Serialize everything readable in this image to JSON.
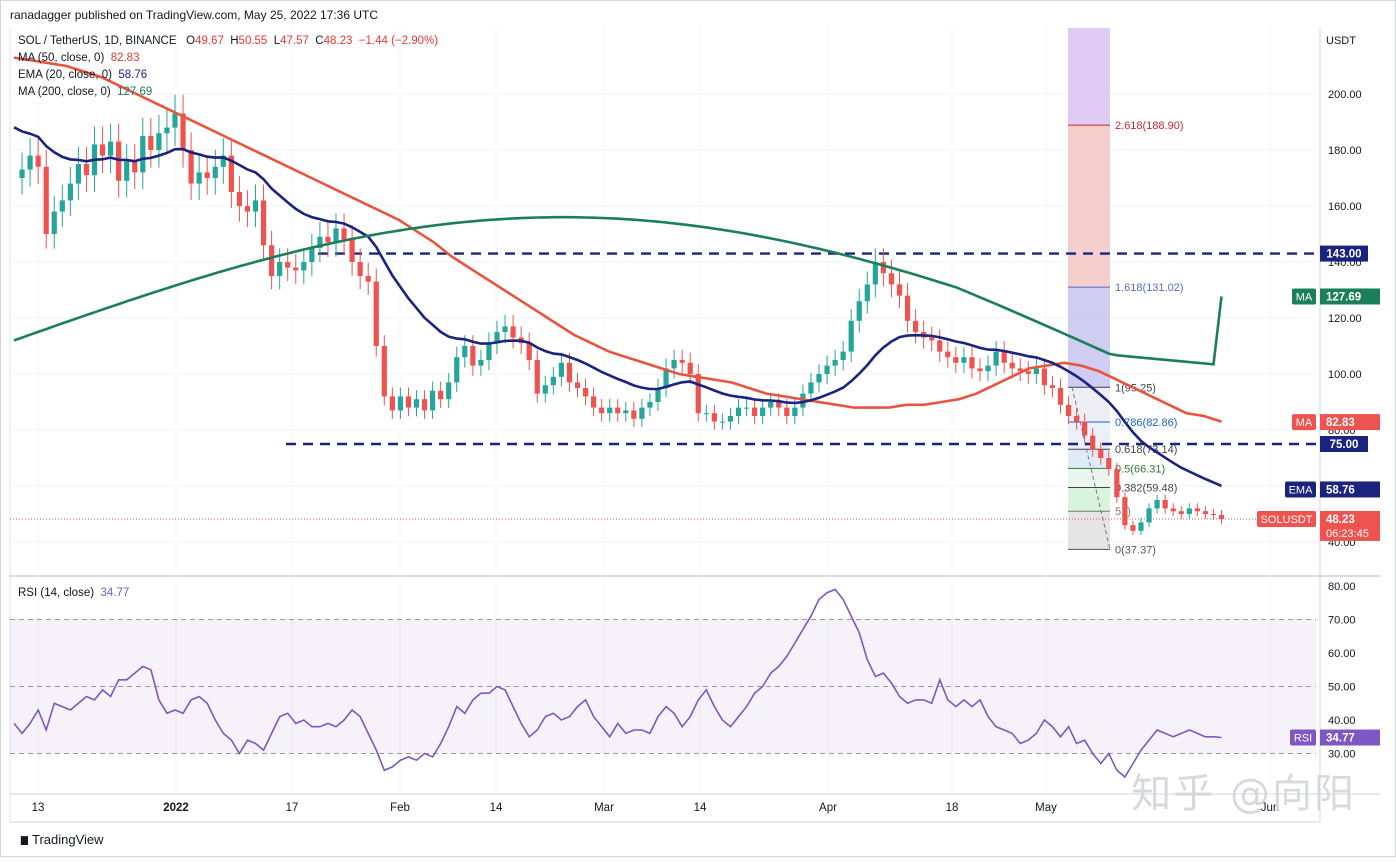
{
  "header": {
    "published": "ranadagger published on TradingView.com, May 25, 2022 17:36 UTC",
    "symbol": "SOL / TetherUS, 1D, BINANCE",
    "ohlc": [
      {
        "label": "O",
        "value": "49.67"
      },
      {
        "label": "H",
        "value": "50.55"
      },
      {
        "label": "L",
        "value": "47.57"
      },
      {
        "label": "C",
        "value": "48.23"
      }
    ],
    "change": "−1.44 (−2.90%)"
  },
  "indicators": [
    {
      "name": "MA (50, close, 0)",
      "value": "82.83",
      "color": "#e8553e"
    },
    {
      "name": "EMA (20, close, 0)",
      "value": "58.76",
      "color": "#1a237e"
    },
    {
      "name": "MA (200, close, 0)",
      "value": "127.69",
      "color": "#1b7f5a"
    }
  ],
  "rsi": {
    "name": "RSI (14, close)",
    "value": "34.77",
    "color": "#7e57c2"
  },
  "branding": {
    "logo_text": "TradingView",
    "watermark": "知乎 @向阳"
  },
  "colors": {
    "up": "#26a69a",
    "down": "#ef5350",
    "ema": "#1a237e",
    "ma50": "#e8553e",
    "ma200": "#1b7f5a",
    "rsi": "#7e57c2"
  },
  "chart_data": [
    {
      "type": "candlestick",
      "title": "SOL / TetherUS, 1D, BINANCE",
      "yunit": "USDT",
      "ylim": [
        36,
        218
      ],
      "yticks": [
        40,
        60,
        80,
        100,
        120,
        140,
        160,
        180,
        200
      ],
      "x_tick_labels": [
        "13",
        "2022",
        "17",
        "Feb",
        "14",
        "Mar",
        "14",
        "Apr",
        "18",
        "May",
        "Jun"
      ],
      "close_series": [
        170,
        173,
        178,
        174,
        150,
        158,
        162,
        168,
        175,
        171,
        182,
        178,
        183,
        169,
        176,
        172,
        185,
        180,
        186,
        188,
        193,
        180,
        168,
        172,
        170,
        174,
        178,
        165,
        160,
        158,
        162,
        146,
        135,
        140,
        138,
        137,
        140,
        145,
        149,
        147,
        152,
        148,
        140,
        135,
        133,
        110,
        92,
        87,
        92,
        88,
        91,
        87,
        94,
        91,
        97,
        106,
        110,
        103,
        105,
        111,
        115,
        117,
        113,
        111,
        105,
        93,
        96,
        99,
        104,
        97,
        95,
        92,
        88,
        86,
        88,
        86,
        87,
        84,
        88,
        90,
        95,
        102,
        105,
        104,
        100,
        86,
        86,
        83,
        83,
        85,
        88,
        88,
        85,
        88,
        90,
        88,
        85,
        88,
        93,
        97,
        100,
        103,
        105,
        108,
        119,
        126,
        132,
        140,
        136,
        132,
        128,
        119,
        115,
        113,
        112,
        108,
        106,
        104,
        106,
        102,
        101,
        103,
        108,
        104,
        102,
        101,
        100,
        102,
        96,
        95,
        89,
        85,
        83,
        78,
        73,
        70,
        66,
        56,
        46,
        44,
        47,
        52,
        55,
        52,
        51,
        50,
        52,
        51,
        50,
        49.67,
        48.23
      ],
      "ohlc_last": {
        "open": 49.67,
        "high": 50.55,
        "low": 47.57,
        "close": 48.23
      },
      "series": [
        {
          "name": "MA (50, close, 0)",
          "last": 82.83,
          "values": [
            213,
            212,
            211,
            210,
            208,
            206,
            203,
            200,
            197,
            194,
            191,
            188,
            185,
            182,
            179,
            176,
            173,
            170,
            167,
            164,
            161,
            158,
            155,
            151,
            147,
            142,
            138,
            134,
            130,
            126,
            122,
            118,
            114,
            111,
            108,
            106,
            104,
            102,
            100,
            99,
            98,
            97,
            95,
            93,
            92,
            91,
            90,
            89,
            88,
            88,
            88,
            89,
            89,
            90,
            91,
            93,
            96,
            99,
            102,
            103,
            104,
            103,
            101,
            98,
            95,
            92,
            89,
            86,
            85,
            83
          ],
          "x_start": 0,
          "x_end": 150
        },
        {
          "name": "EMA (20, close, 0)",
          "last": 58.76
        },
        {
          "name": "MA (200, close, 0)",
          "last": 127.69
        }
      ],
      "levels": [
        {
          "price": 143.0,
          "label": "143.00"
        },
        {
          "price": 75.0,
          "label": "75.00"
        }
      ],
      "fibonacci": [
        {
          "ratio": "0",
          "price": 37.37
        },
        {
          "ratio": "0.236",
          "price": 51.0
        },
        {
          "ratio": "0.382",
          "price": 59.48
        },
        {
          "ratio": "0.5",
          "price": 66.31
        },
        {
          "ratio": "0.618",
          "price": 73.14
        },
        {
          "ratio": "0.786",
          "price": 82.86
        },
        {
          "ratio": "1",
          "price": 95.25
        },
        {
          "ratio": "1.618",
          "price": 131.02
        },
        {
          "ratio": "2.618",
          "price": 188.9
        }
      ],
      "fib_labels": [
        "0(37.37)",
        "51)",
        "0.382(59.48)",
        "0.5(66.31)",
        "0.618(73.14)",
        "0.786(82.86)",
        "1(95.25)",
        "1.618(131.02)",
        "2.618(188.90)"
      ],
      "price_tags": [
        {
          "label": "MA",
          "value": "127.69"
        },
        {
          "label": "MA",
          "value": "82.83"
        },
        {
          "label": "EMA",
          "value": "58.76"
        },
        {
          "label": "SOLUSDT",
          "value": "48.23",
          "countdown": "06:23:45"
        }
      ]
    },
    {
      "type": "line",
      "title": "RSI (14, close)",
      "ylim": [
        16,
        82
      ],
      "yticks": [
        30,
        40,
        50,
        60,
        70,
        80
      ],
      "band": [
        30,
        70
      ],
      "midline": 50,
      "values": [
        39,
        36,
        39,
        43,
        37,
        45,
        44,
        43,
        45,
        47,
        46,
        49,
        47,
        52,
        52,
        54,
        56,
        55,
        46,
        42,
        43,
        42,
        46,
        47,
        45,
        40,
        36,
        34,
        30,
        34,
        33,
        31,
        36,
        41,
        42,
        39,
        40,
        38,
        38,
        39,
        38,
        40,
        43,
        41,
        36,
        31,
        25,
        26,
        28,
        29,
        28,
        30,
        29,
        33,
        38,
        44,
        42,
        46,
        48,
        48,
        50,
        49,
        44,
        39,
        35,
        37,
        41,
        42,
        40,
        41,
        44,
        46,
        41,
        38,
        35,
        39,
        36,
        37,
        37,
        36,
        41,
        44,
        42,
        38,
        41,
        46,
        49,
        44,
        40,
        38,
        41,
        44,
        48,
        50,
        54,
        56,
        59,
        63,
        67,
        71,
        76,
        78,
        79,
        76,
        71,
        66,
        58,
        53,
        54,
        51,
        47,
        45,
        46,
        46,
        45,
        52,
        46,
        44,
        46,
        44,
        46,
        41,
        38,
        37,
        36,
        33,
        34,
        36,
        40,
        38,
        35,
        38,
        33,
        34,
        30,
        27,
        30,
        25,
        23,
        27,
        31,
        34,
        37,
        36,
        35,
        36,
        37,
        36,
        35,
        35,
        34.77
      ],
      "last": "34.77",
      "label": "RSI"
    }
  ]
}
